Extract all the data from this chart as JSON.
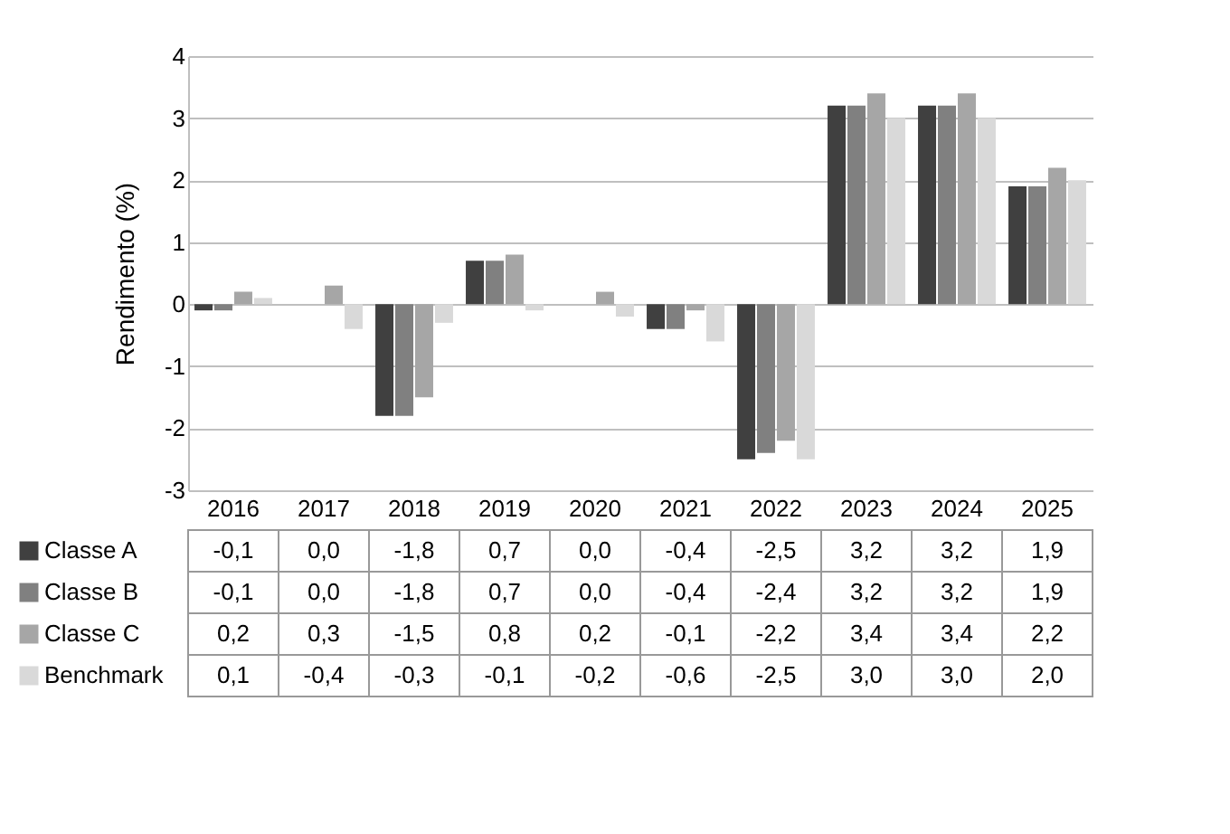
{
  "chart_data": {
    "type": "bar",
    "ylabel": "Rendimento (%)",
    "categories": [
      "2016",
      "2017",
      "2018",
      "2019",
      "2020",
      "2021",
      "2022",
      "2023",
      "2024",
      "2025"
    ],
    "series": [
      {
        "name": "Classe A",
        "color": "#404040",
        "values": [
          -0.1,
          0.0,
          -1.8,
          0.7,
          0.0,
          -0.4,
          -2.5,
          3.2,
          3.2,
          1.9
        ],
        "value_labels": [
          "-0,1",
          "0,0",
          "-1,8",
          "0,7",
          "0,0",
          "-0,4",
          "-2,5",
          "3,2",
          "3,2",
          "1,9"
        ]
      },
      {
        "name": "Classe B",
        "color": "#808080",
        "values": [
          -0.1,
          0.0,
          -1.8,
          0.7,
          0.0,
          -0.4,
          -2.4,
          3.2,
          3.2,
          1.9
        ],
        "value_labels": [
          "-0,1",
          "0,0",
          "-1,8",
          "0,7",
          "0,0",
          "-0,4",
          "-2,4",
          "3,2",
          "3,2",
          "1,9"
        ]
      },
      {
        "name": "Classe C",
        "color": "#a6a6a6",
        "values": [
          0.2,
          0.3,
          -1.5,
          0.8,
          0.2,
          -0.1,
          -2.2,
          3.4,
          3.4,
          2.2
        ],
        "value_labels": [
          "0,2",
          "0,3",
          "-1,5",
          "0,8",
          "0,2",
          "-0,1",
          "-2,2",
          "3,4",
          "3,4",
          "2,2"
        ]
      },
      {
        "name": "Benchmark",
        "color": "#d9d9d9",
        "values": [
          0.1,
          -0.4,
          -0.3,
          -0.1,
          -0.2,
          -0.6,
          -2.5,
          3.0,
          3.0,
          2.0
        ],
        "value_labels": [
          "0,1",
          "-0,4",
          "-0,3",
          "-0,1",
          "-0,2",
          "-0,6",
          "-2,5",
          "3,0",
          "3,0",
          "2,0"
        ]
      }
    ],
    "ylim": [
      -3,
      4
    ],
    "yticks": [
      -3,
      -2,
      -1,
      0,
      1,
      2,
      3,
      4
    ],
    "grid": "y",
    "legend": "bottom"
  }
}
